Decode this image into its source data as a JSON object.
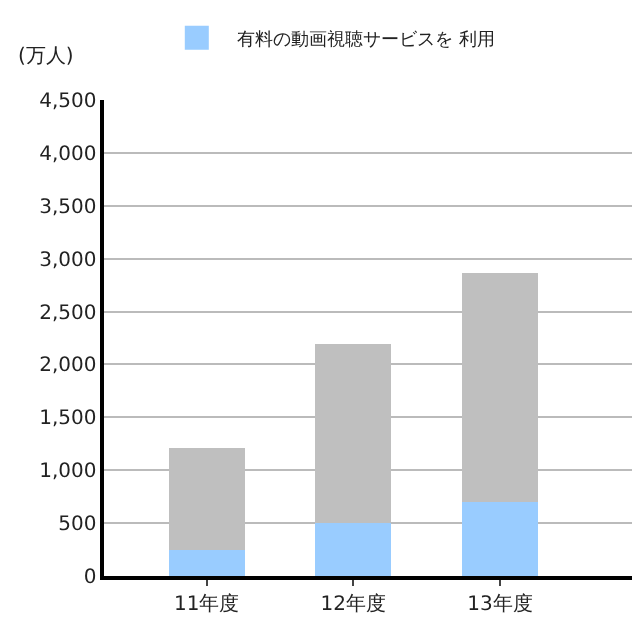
{
  "chart_data": {
    "type": "bar",
    "ylabel": "(万人)",
    "categories": [
      "11年度",
      "12年度",
      "13年度"
    ],
    "stacked": true,
    "series": [
      {
        "name": "有料の動画視聴サービスを 利用",
        "color": "#99ccff",
        "values": [
          245,
          500,
          700
        ]
      },
      {
        "color": "#bfbfbf",
        "values": [
          965,
          1690,
          2160
        ]
      }
    ],
    "ylim": [
      0,
      4500
    ],
    "yticks": [
      {
        "value": 0,
        "label": "0"
      },
      {
        "value": 500,
        "label": "500"
      },
      {
        "value": 1000,
        "label": "1,000"
      },
      {
        "value": 1500,
        "label": "1,500"
      },
      {
        "value": 2000,
        "label": "2,000"
      },
      {
        "value": 2500,
        "label": "2,500"
      },
      {
        "value": 3000,
        "label": "3,000"
      },
      {
        "value": 3500,
        "label": "3,500"
      },
      {
        "value": 4000,
        "label": "4,000"
      },
      {
        "value": 4500,
        "label": "4,500"
      }
    ],
    "grid": "y",
    "legend": "top"
  }
}
